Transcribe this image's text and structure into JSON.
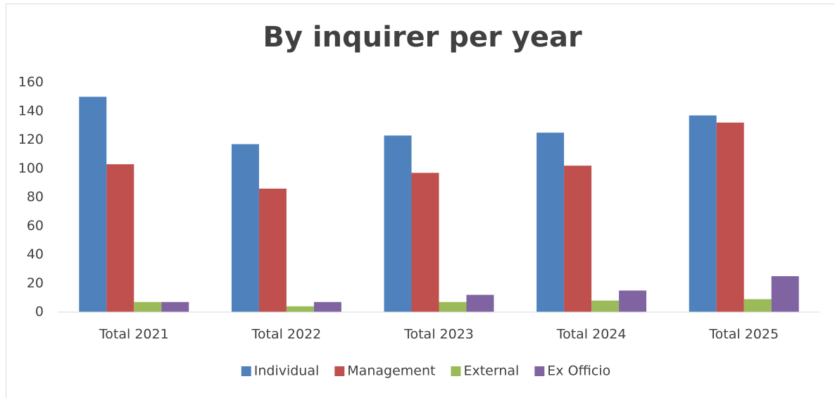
{
  "chart_data": {
    "type": "bar",
    "title": "By inquirer per year",
    "categories": [
      "Total 2021",
      "Total 2022",
      "Total 2023",
      "Total 2024",
      "Total 2025"
    ],
    "series": [
      {
        "name": "Individual",
        "color": "#4f81bd",
        "values": [
          150,
          117,
          123,
          125,
          137
        ]
      },
      {
        "name": "Management",
        "color": "#c0504d",
        "values": [
          103,
          86,
          97,
          102,
          132
        ]
      },
      {
        "name": "External",
        "color": "#9bbb59",
        "values": [
          7,
          4,
          7,
          8,
          9
        ]
      },
      {
        "name": "Ex Officio",
        "color": "#8064a2",
        "values": [
          7,
          7,
          12,
          15,
          25
        ]
      }
    ],
    "ylim": [
      0,
      160
    ],
    "yticks": [
      0,
      20,
      40,
      60,
      80,
      100,
      120,
      140,
      160
    ],
    "grid": false,
    "legend": "bottom"
  }
}
